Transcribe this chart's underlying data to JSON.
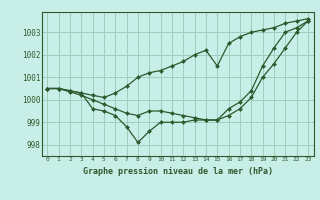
{
  "xlabel": "Graphe pression niveau de la mer (hPa)",
  "background_color": "#c8eee8",
  "grid_color": "#a0ccc0",
  "line_color": "#2d5a2d",
  "marker_color": "#2d5a2d",
  "xlim": [
    -0.5,
    23.5
  ],
  "ylim": [
    997.5,
    1003.9
  ],
  "yticks": [
    998,
    999,
    1000,
    1001,
    1002,
    1003
  ],
  "xticks": [
    0,
    1,
    2,
    3,
    4,
    5,
    6,
    7,
    8,
    9,
    10,
    11,
    12,
    13,
    14,
    15,
    16,
    17,
    18,
    19,
    20,
    21,
    22,
    23
  ],
  "series": [
    [
      1000.5,
      1000.5,
      1000.4,
      1000.3,
      999.6,
      999.5,
      999.3,
      998.8,
      998.1,
      998.6,
      999.0,
      999.0,
      999.0,
      999.1,
      999.1,
      999.1,
      999.6,
      999.9,
      1000.4,
      1001.5,
      1002.3,
      1003.0,
      1003.2,
      1003.5
    ],
    [
      1000.5,
      1000.5,
      1000.4,
      1000.3,
      1000.2,
      1000.1,
      1000.3,
      1000.6,
      1001.0,
      1001.2,
      1001.3,
      1001.5,
      1001.7,
      1002.0,
      1002.2,
      1001.5,
      1002.5,
      1002.8,
      1003.0,
      1003.1,
      1003.2,
      1003.4,
      1003.5,
      1003.6
    ],
    [
      1000.5,
      1000.5,
      1000.35,
      1000.2,
      1000.0,
      999.8,
      999.6,
      999.4,
      999.3,
      999.5,
      999.5,
      999.4,
      999.3,
      999.2,
      999.1,
      999.1,
      999.3,
      999.6,
      1000.1,
      1001.0,
      1001.6,
      1002.3,
      1003.0,
      1003.5
    ]
  ]
}
